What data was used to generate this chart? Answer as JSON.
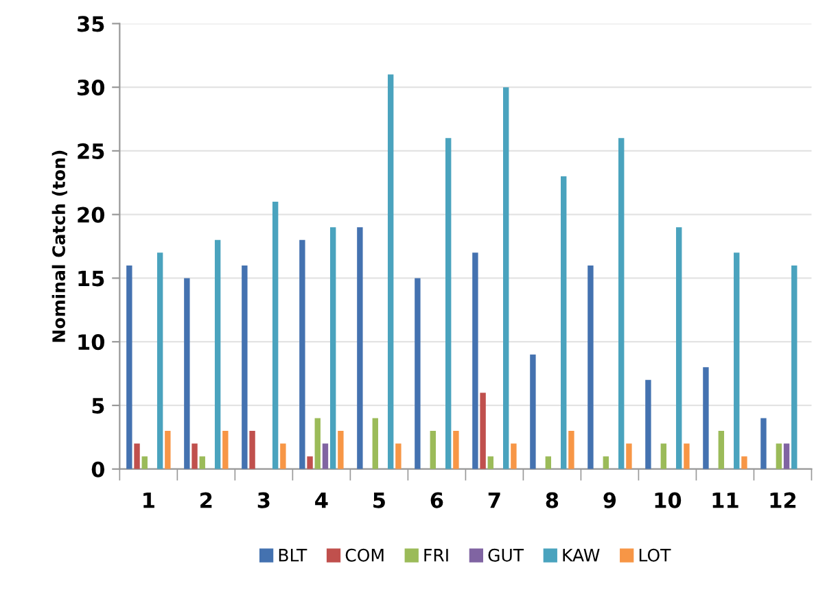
{
  "chart_data": {
    "type": "bar",
    "ylabel": "Nominal Catch (ton)",
    "categories": [
      "1",
      "2",
      "3",
      "4",
      "5",
      "6",
      "7",
      "8",
      "9",
      "10",
      "11",
      "12"
    ],
    "series": [
      {
        "name": "BLT",
        "color": "#4472b0",
        "values": [
          16,
          15,
          16,
          18,
          19,
          15,
          17,
          9,
          16,
          7,
          8,
          4
        ]
      },
      {
        "name": "COM",
        "color": "#c0504d",
        "values": [
          2,
          2,
          3,
          1,
          0,
          0,
          6,
          0,
          0,
          0,
          0,
          0
        ]
      },
      {
        "name": "FRI",
        "color": "#9bbb59",
        "values": [
          1,
          1,
          0,
          4,
          4,
          3,
          1,
          1,
          1,
          2,
          3,
          2
        ]
      },
      {
        "name": "GUT",
        "color": "#8064a2",
        "values": [
          0,
          0,
          0,
          2,
          0,
          0,
          0,
          0,
          0,
          0,
          0,
          2
        ]
      },
      {
        "name": "KAW",
        "color": "#4aa3be",
        "values": [
          17,
          18,
          21,
          19,
          31,
          26,
          30,
          23,
          26,
          19,
          17,
          16
        ]
      },
      {
        "name": "LOT",
        "color": "#f79646",
        "values": [
          3,
          3,
          2,
          3,
          2,
          3,
          2,
          3,
          2,
          2,
          1,
          0
        ]
      }
    ],
    "ylim": [
      0,
      35
    ],
    "yticks": [
      0,
      5,
      10,
      15,
      20,
      25,
      30,
      35
    ],
    "grid": "y",
    "legend": "bottom"
  }
}
